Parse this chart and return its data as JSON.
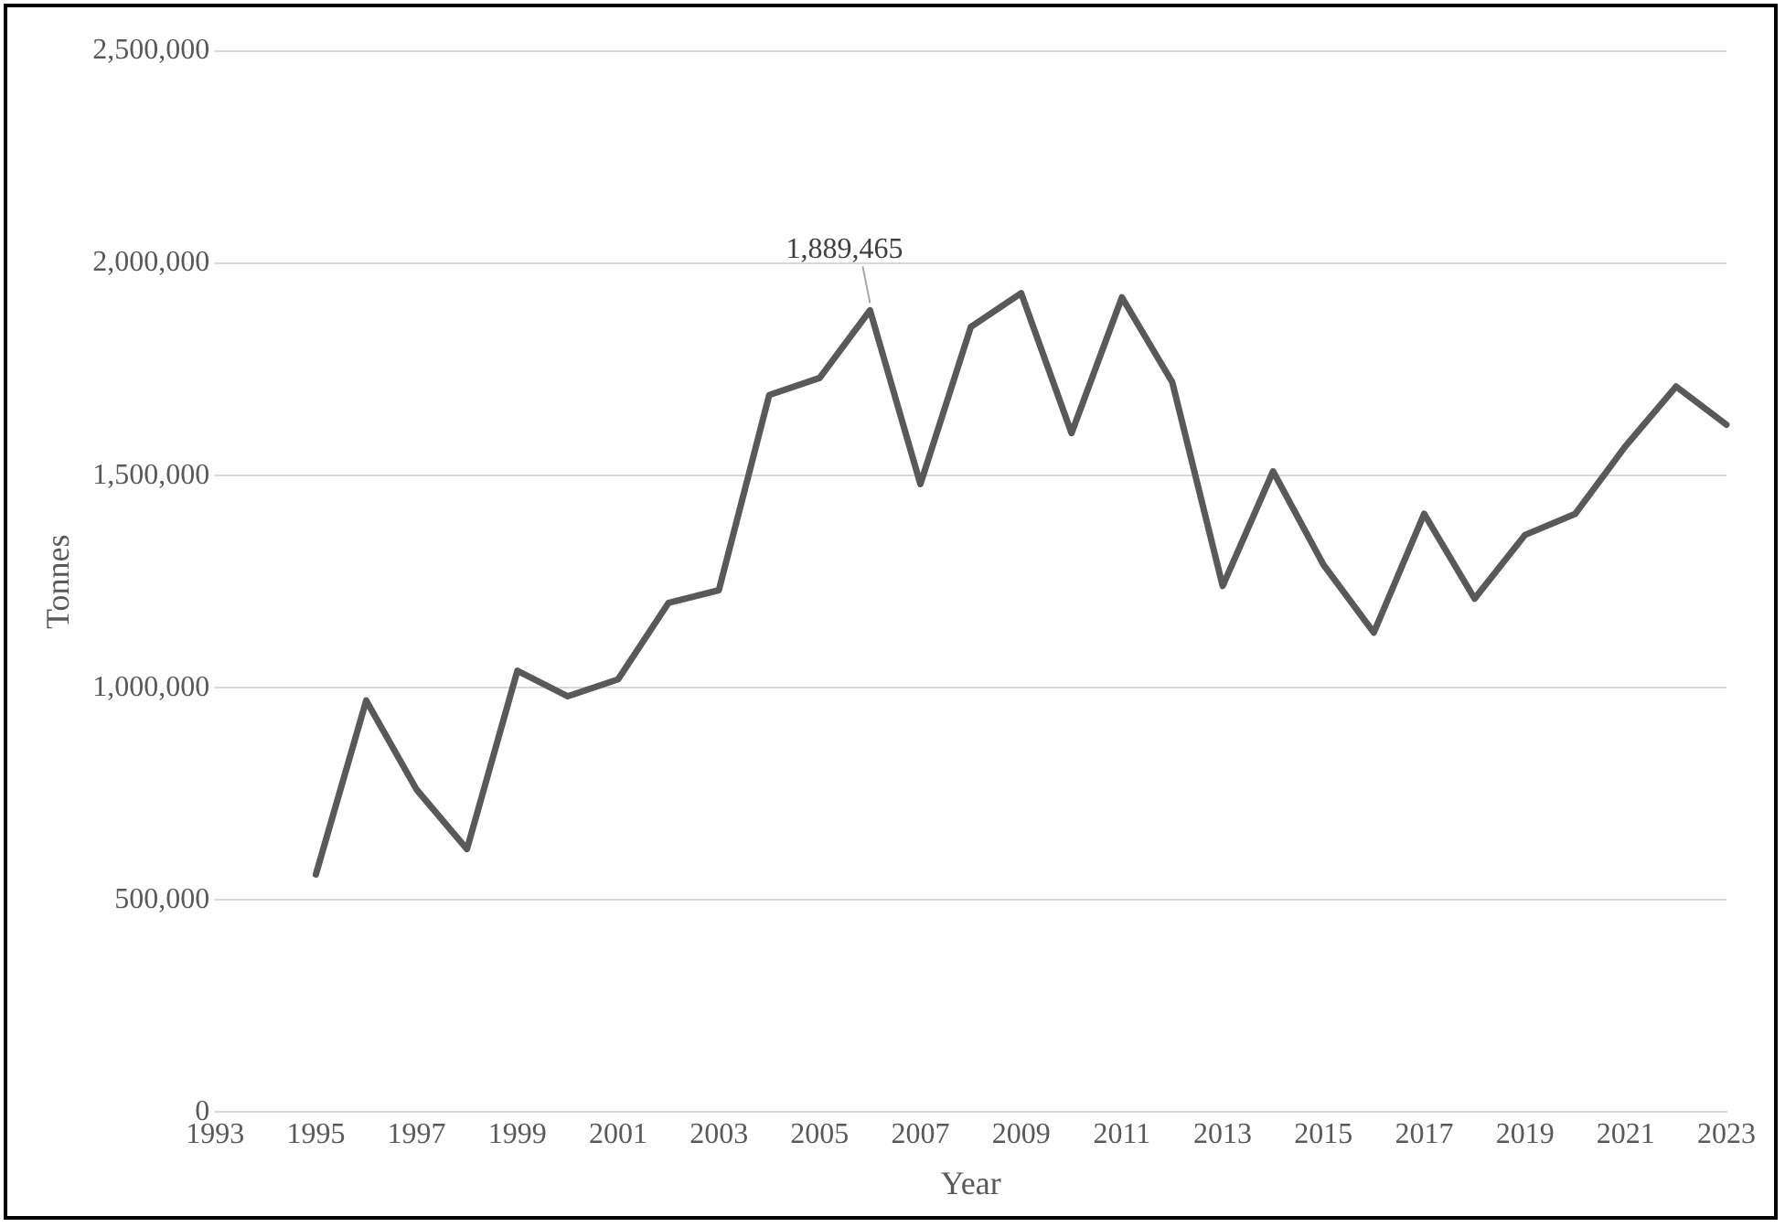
{
  "chart_data": {
    "type": "line",
    "xlabel": "Year",
    "ylabel": "Tonnes",
    "x": [
      1995,
      1996,
      1997,
      1998,
      1999,
      2000,
      2001,
      2002,
      2003,
      2004,
      2005,
      2006,
      2007,
      2008,
      2009,
      2010,
      2011,
      2012,
      2013,
      2014,
      2015,
      2016,
      2017,
      2018,
      2019,
      2020,
      2021,
      2022,
      2023
    ],
    "series": [
      {
        "color": "#595959",
        "values": [
          560000,
          970000,
          760000,
          620000,
          1040000,
          980000,
          1020000,
          1200000,
          1230000,
          1690000,
          1730000,
          1889465,
          1480000,
          1850000,
          1930000,
          1600000,
          1920000,
          1720000,
          1240000,
          1510000,
          1290000,
          1130000,
          1410000,
          1210000,
          1360000,
          1410000,
          1570000,
          1710000,
          1620000
        ]
      }
    ],
    "xlim": [
      1993,
      2023
    ],
    "xticks": [
      1993,
      1995,
      1997,
      1999,
      2001,
      2003,
      2005,
      2007,
      2009,
      2011,
      2013,
      2015,
      2017,
      2019,
      2021,
      2023
    ],
    "ylim": [
      0,
      2500000
    ],
    "yticks": [
      {
        "value": 0,
        "label": "0"
      },
      {
        "value": 500000,
        "label": "500,000"
      },
      {
        "value": 1000000,
        "label": "1,000,000"
      },
      {
        "value": 1500000,
        "label": "1,500,000"
      },
      {
        "value": 2000000,
        "label": "2,000,000"
      },
      {
        "value": 2500000,
        "label": "2,500,000"
      }
    ],
    "annotations": [
      {
        "text": "1,889,465",
        "x": 2006,
        "y": 1889465
      }
    ],
    "grid": "y",
    "legend": false,
    "marker": "none",
    "line_style": "solid"
  }
}
